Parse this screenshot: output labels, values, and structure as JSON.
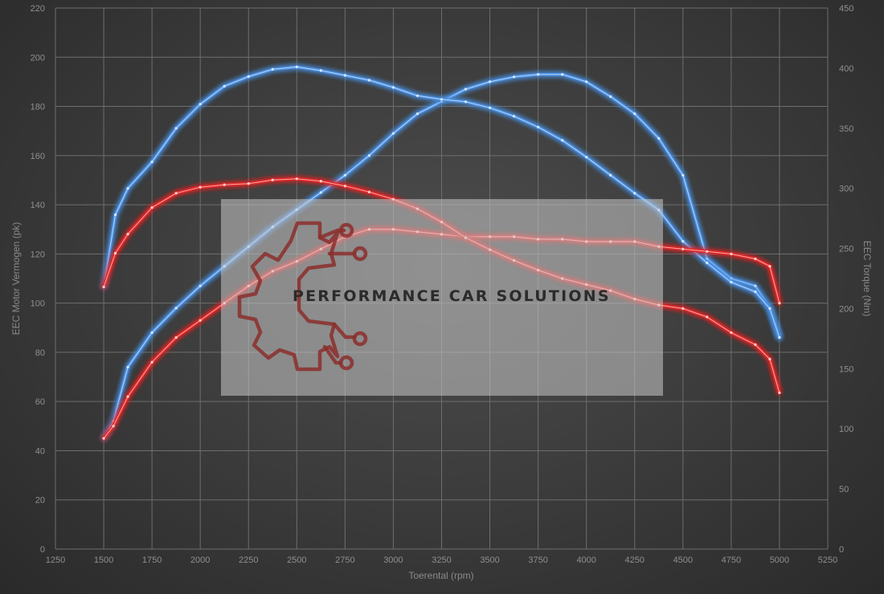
{
  "chart_data": {
    "type": "line",
    "xlabel": "Toerental (rpm)",
    "ylabel_left": "EEC Motor Vermogen (pk)",
    "ylabel_right": "EEC Torque (Nm)",
    "xlim": [
      1250,
      5250
    ],
    "ylim_left": [
      0,
      220
    ],
    "ylim_right": [
      0,
      450
    ],
    "x_ticks": [
      1250,
      1500,
      1750,
      2000,
      2250,
      2500,
      2750,
      3000,
      3250,
      3500,
      3750,
      4000,
      4250,
      4500,
      4750,
      5000,
      5250
    ],
    "y_left_ticks": [
      0,
      20,
      40,
      60,
      80,
      100,
      120,
      140,
      160,
      180,
      200,
      220
    ],
    "y_right_ticks": [
      0,
      50,
      100,
      150,
      200,
      250,
      300,
      350,
      400,
      450
    ],
    "grid": true,
    "series": [
      {
        "axis": "left",
        "color": "#4a8fe0",
        "points": [
          [
            1500,
            45
          ],
          [
            1550,
            52
          ],
          [
            1625,
            74
          ],
          [
            1750,
            88
          ],
          [
            1875,
            98
          ],
          [
            2000,
            107
          ],
          [
            2125,
            115
          ],
          [
            2250,
            123
          ],
          [
            2375,
            131
          ],
          [
            2500,
            138
          ],
          [
            2625,
            145
          ],
          [
            2750,
            152
          ],
          [
            2875,
            160
          ],
          [
            3000,
            169
          ],
          [
            3125,
            177
          ],
          [
            3250,
            182
          ],
          [
            3375,
            187
          ],
          [
            3500,
            190
          ],
          [
            3625,
            192
          ],
          [
            3750,
            193
          ],
          [
            3875,
            193
          ],
          [
            4000,
            190
          ],
          [
            4125,
            184
          ],
          [
            4250,
            177
          ],
          [
            4375,
            167
          ],
          [
            4500,
            152
          ],
          [
            4625,
            118
          ],
          [
            4750,
            110
          ],
          [
            4875,
            107
          ],
          [
            4950,
            98
          ],
          [
            5000,
            86
          ]
        ]
      },
      {
        "axis": "right",
        "color": "#4a8fe0",
        "points": [
          [
            1500,
            218
          ],
          [
            1560,
            278
          ],
          [
            1625,
            300
          ],
          [
            1750,
            322
          ],
          [
            1875,
            350
          ],
          [
            2000,
            370
          ],
          [
            2125,
            385
          ],
          [
            2250,
            393
          ],
          [
            2375,
            399
          ],
          [
            2500,
            401
          ],
          [
            2625,
            398
          ],
          [
            2750,
            394
          ],
          [
            2875,
            390
          ],
          [
            3000,
            384
          ],
          [
            3125,
            377
          ],
          [
            3250,
            374
          ],
          [
            3375,
            372
          ],
          [
            3500,
            367
          ],
          [
            3625,
            360
          ],
          [
            3750,
            351
          ],
          [
            3875,
            340
          ],
          [
            4000,
            326
          ],
          [
            4125,
            311
          ],
          [
            4250,
            296
          ],
          [
            4375,
            282
          ],
          [
            4500,
            256
          ],
          [
            4625,
            238
          ],
          [
            4750,
            222
          ],
          [
            4875,
            214
          ],
          [
            4950,
            200
          ],
          [
            5000,
            176
          ]
        ]
      },
      {
        "axis": "left",
        "color": "#e02828",
        "points": [
          [
            1500,
            45
          ],
          [
            1550,
            50
          ],
          [
            1625,
            62
          ],
          [
            1750,
            76
          ],
          [
            1875,
            86
          ],
          [
            2000,
            93
          ],
          [
            2125,
            100
          ],
          [
            2250,
            107
          ],
          [
            2375,
            113
          ],
          [
            2500,
            117
          ],
          [
            2625,
            122
          ],
          [
            2750,
            127
          ],
          [
            2875,
            130
          ],
          [
            3000,
            130
          ],
          [
            3125,
            129
          ],
          [
            3250,
            128
          ],
          [
            3375,
            127
          ],
          [
            3500,
            127
          ],
          [
            3625,
            127
          ],
          [
            3750,
            126
          ],
          [
            3875,
            126
          ],
          [
            4000,
            125
          ],
          [
            4125,
            125
          ],
          [
            4250,
            125
          ],
          [
            4375,
            123
          ],
          [
            4500,
            122
          ],
          [
            4625,
            121
          ],
          [
            4750,
            120
          ],
          [
            4875,
            118
          ],
          [
            4950,
            115
          ],
          [
            5000,
            100
          ]
        ]
      },
      {
        "axis": "right",
        "color": "#e02828",
        "points": [
          [
            1500,
            218
          ],
          [
            1560,
            246
          ],
          [
            1625,
            262
          ],
          [
            1750,
            284
          ],
          [
            1875,
            296
          ],
          [
            2000,
            301
          ],
          [
            2125,
            303
          ],
          [
            2250,
            304
          ],
          [
            2375,
            307
          ],
          [
            2500,
            308
          ],
          [
            2625,
            306
          ],
          [
            2750,
            302
          ],
          [
            2875,
            297
          ],
          [
            3000,
            291
          ],
          [
            3125,
            283
          ],
          [
            3250,
            272
          ],
          [
            3375,
            259
          ],
          [
            3500,
            249
          ],
          [
            3625,
            240
          ],
          [
            3750,
            232
          ],
          [
            3875,
            225
          ],
          [
            4000,
            220
          ],
          [
            4125,
            215
          ],
          [
            4250,
            208
          ],
          [
            4375,
            203
          ],
          [
            4500,
            200
          ],
          [
            4625,
            193
          ],
          [
            4750,
            180
          ],
          [
            4875,
            170
          ],
          [
            4950,
            158
          ],
          [
            5000,
            130
          ]
        ]
      }
    ]
  },
  "watermark": {
    "text": "PERFORMANCE CAR SOLUTIONS",
    "logo_icon": "gear-circuit-icon",
    "logo_color": "#8b2e2b"
  }
}
